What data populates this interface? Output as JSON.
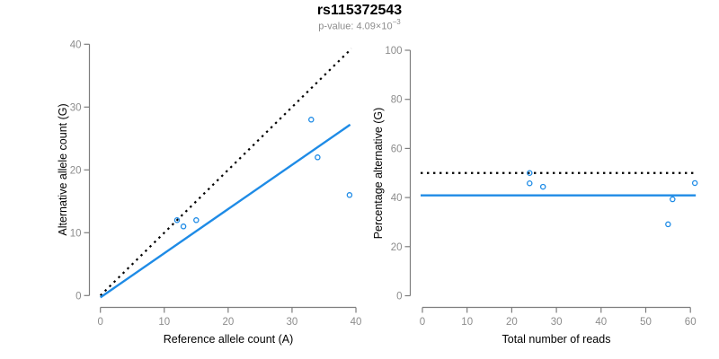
{
  "header": {
    "title": "rs115372543",
    "subtitle": {
      "prefix": "p-value: 4.09×10",
      "exponent": "−3"
    }
  },
  "colors": {
    "accent_blue": "#1E8BE6",
    "axis_gray": "#7d7d7d",
    "tick_label_gray": "#8c8c8c",
    "line_black": "#000000"
  },
  "chart_data": [
    {
      "type": "scatter",
      "title": "rs115372543",
      "subtitle": "p-value: 4.09×10^−3",
      "xlabel": "Reference allele count (A)",
      "ylabel": "Alternative allele count (G)",
      "xlim": [
        0,
        40
      ],
      "ylim": [
        0,
        40
      ],
      "xticks": [
        0,
        10,
        20,
        30,
        40
      ],
      "yticks": [
        0,
        10,
        20,
        30,
        40
      ],
      "grid": false,
      "points": [
        [
          12,
          12
        ],
        [
          13,
          11
        ],
        [
          15,
          12
        ],
        [
          33,
          28
        ],
        [
          34,
          22
        ],
        [
          39,
          16
        ]
      ],
      "lines": [
        {
          "name": "identity",
          "kind": "segment",
          "style": "dotted",
          "color": "black",
          "from": [
            0,
            0
          ],
          "to": [
            39.3,
            39.3
          ]
        },
        {
          "name": "fit",
          "kind": "segment",
          "style": "solid",
          "color": "blue",
          "from": [
            0,
            -0.3
          ],
          "to": [
            39.1,
            27.2
          ]
        }
      ]
    },
    {
      "type": "scatter",
      "xlabel": "Total number of reads",
      "ylabel": "Percentage alternative (G)",
      "xlim": [
        0,
        62
      ],
      "ylim": [
        0,
        100
      ],
      "xticks": [
        0,
        10,
        20,
        30,
        40,
        50,
        60
      ],
      "yticks": [
        0,
        20,
        40,
        60,
        80,
        100
      ],
      "grid": false,
      "points": [
        [
          24,
          50
        ],
        [
          24,
          45.8
        ],
        [
          27,
          44.4
        ],
        [
          55,
          29.1
        ],
        [
          56,
          39.3
        ],
        [
          61,
          45.9
        ]
      ],
      "lines": [
        {
          "name": "expected-50pct",
          "kind": "hline",
          "style": "dotted",
          "color": "black",
          "y": 50,
          "x_from": -0.4,
          "x_to": 61
        },
        {
          "name": "observed-mean",
          "kind": "hline",
          "style": "solid",
          "color": "blue",
          "y": 40.9,
          "x_from": -0.4,
          "x_to": 61.2
        }
      ]
    }
  ]
}
